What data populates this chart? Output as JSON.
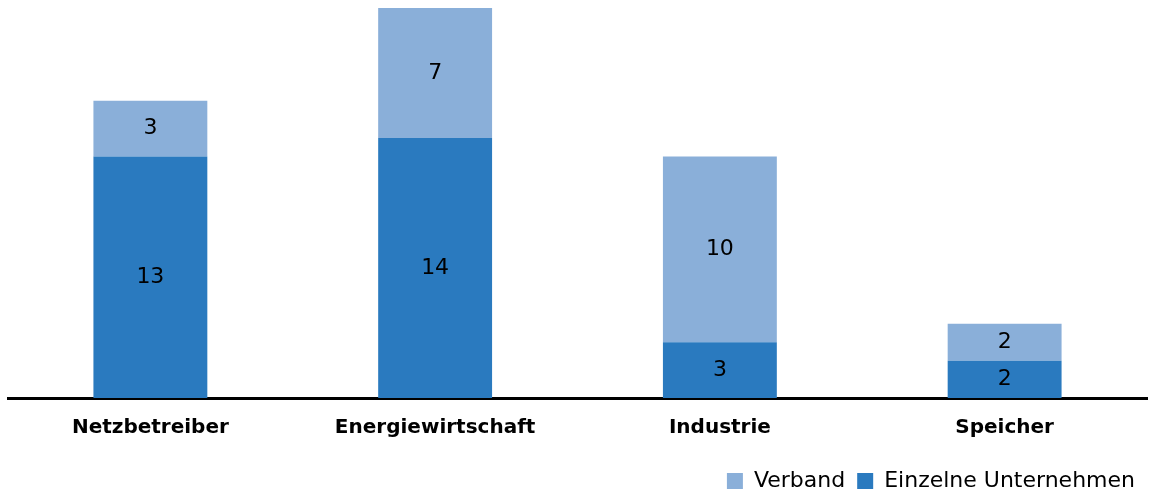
{
  "chart_data": {
    "type": "bar",
    "stacked": true,
    "categories": [
      "Netzbetreiber",
      "Energiewirtschaft",
      "Industrie",
      "Speicher"
    ],
    "series": [
      {
        "name": "Einzelne Unternehmen",
        "color": "#2a7abf",
        "values": [
          13,
          14,
          3,
          2
        ]
      },
      {
        "name": "Verband",
        "color": "#8aafd9",
        "values": [
          3,
          7,
          10,
          2
        ]
      }
    ],
    "data_labels": true,
    "legend": "bottom right",
    "grid": false
  }
}
